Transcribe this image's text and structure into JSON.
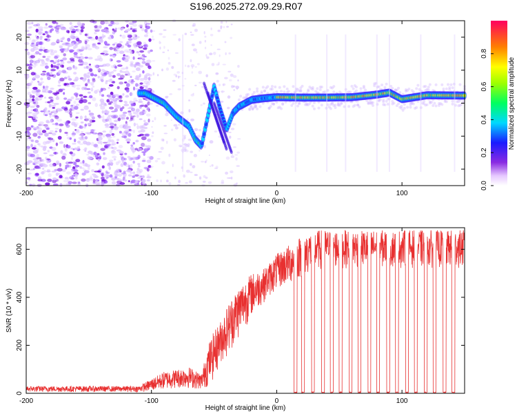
{
  "title": "S196.2025.272.09.29.R07",
  "chart_data": [
    {
      "type": "heatmap",
      "name": "spectrogram",
      "xlabel": "Height of straight line (km)",
      "ylabel": "Frequency (Hz)",
      "xlim": [
        -200,
        150
      ],
      "ylim": [
        -25,
        25
      ],
      "xticks": [
        -200,
        -100,
        0,
        100
      ],
      "xtick_labels": [
        "-200",
        "-100",
        "0",
        "100"
      ],
      "yticks": [
        -20,
        -10,
        0,
        10,
        20
      ],
      "ytick_labels": [
        "-20",
        "-10",
        "0",
        "10",
        "20"
      ],
      "colorbar": {
        "label": "Normalized spectral amplitude",
        "range": [
          0,
          1
        ],
        "ticks": [
          0.0,
          0.2,
          0.4,
          0.6,
          0.8
        ],
        "tick_labels": [
          "0.0",
          "0.2",
          "0.4",
          "0.6",
          "0.8"
        ]
      },
      "ridge": {
        "description_points_x": [
          -105,
          -90,
          -80,
          -70,
          -65,
          -60,
          -55,
          -50,
          -45,
          -40,
          -35,
          -30,
          -20,
          -10,
          0,
          20,
          40,
          60,
          80,
          90,
          100,
          120,
          150
        ],
        "description_points_y": [
          3,
          0,
          -4,
          -7,
          -11,
          -13,
          -4,
          5,
          -2,
          -8,
          -3,
          -1,
          1,
          1.5,
          1.8,
          1.7,
          1.7,
          1.8,
          2.6,
          3.2,
          1.2,
          2.4,
          2.3
        ]
      }
    },
    {
      "type": "line",
      "name": "snr",
      "xlabel": "Height of straight line (km)",
      "ylabel": "SNR (10 * v/v)",
      "xlim": [
        -200,
        150
      ],
      "ylim": [
        0,
        690
      ],
      "xticks": [
        -200,
        -100,
        0,
        100
      ],
      "xtick_labels": [
        "-200",
        "-100",
        "0",
        "100"
      ],
      "yticks": [
        0,
        200,
        400,
        600
      ],
      "ytick_labels": [
        "0",
        "200",
        "400",
        "600"
      ],
      "color": "#e83030",
      "envelope": {
        "x": [
          -200,
          -110,
          -100,
          -90,
          -80,
          -70,
          -60,
          -55,
          -50,
          -45,
          -40,
          -35,
          -30,
          -20,
          -10,
          0,
          10,
          20,
          30,
          50,
          100,
          150
        ],
        "low": [
          5,
          5,
          8,
          15,
          20,
          20,
          15,
          25,
          60,
          120,
          150,
          190,
          230,
          320,
          380,
          430,
          450,
          480,
          510,
          520,
          520,
          520
        ],
        "high": [
          30,
          30,
          60,
          90,
          100,
          110,
          80,
          200,
          260,
          300,
          360,
          410,
          450,
          500,
          520,
          580,
          620,
          660,
          680,
          680,
          680,
          680
        ]
      },
      "dropouts_x": [
        15,
        21,
        29,
        37,
        44,
        51,
        59,
        66,
        74,
        81,
        89,
        96,
        104,
        111,
        119,
        126,
        134,
        141
      ]
    }
  ]
}
